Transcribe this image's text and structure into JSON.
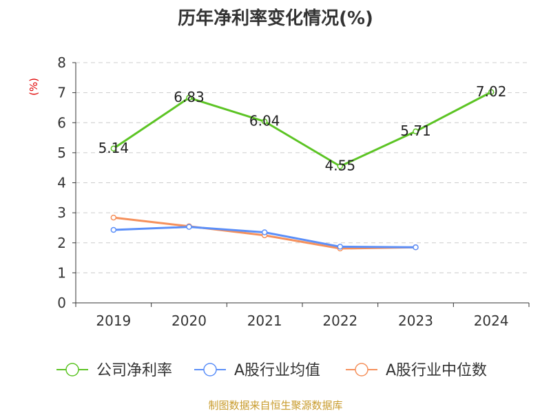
{
  "chart_data": {
    "type": "line",
    "title": "历年净利率变化情况(%)",
    "ylabel": "(%)",
    "categories": [
      "2019",
      "2020",
      "2021",
      "2022",
      "2023",
      "2024"
    ],
    "ylim": [
      0,
      8
    ],
    "yticks": [
      0,
      1,
      2,
      3,
      4,
      5,
      6,
      7,
      8
    ],
    "grid": true,
    "legend_position": "bottom",
    "series": [
      {
        "name": "公司净利率",
        "color": "#5cc424",
        "values": [
          5.14,
          6.83,
          6.04,
          4.55,
          5.71,
          7.02
        ],
        "show_labels": true,
        "labels": [
          "5.14",
          "6.83",
          "6.04",
          "4.55",
          "5.71",
          "7.02"
        ]
      },
      {
        "name": "A股行业均值",
        "color": "#5b8ff9",
        "values": [
          2.43,
          2.53,
          2.35,
          1.87,
          1.85,
          null
        ],
        "show_labels": false
      },
      {
        "name": "A股行业中位数",
        "color": "#f5905b",
        "values": [
          2.84,
          2.55,
          2.25,
          1.81,
          1.85,
          null
        ],
        "show_labels": false
      }
    ]
  },
  "footer": {
    "text": "制图数据来自恒生聚源数据库",
    "color": "#c89b2c"
  },
  "ylabel_color": "#e00000"
}
